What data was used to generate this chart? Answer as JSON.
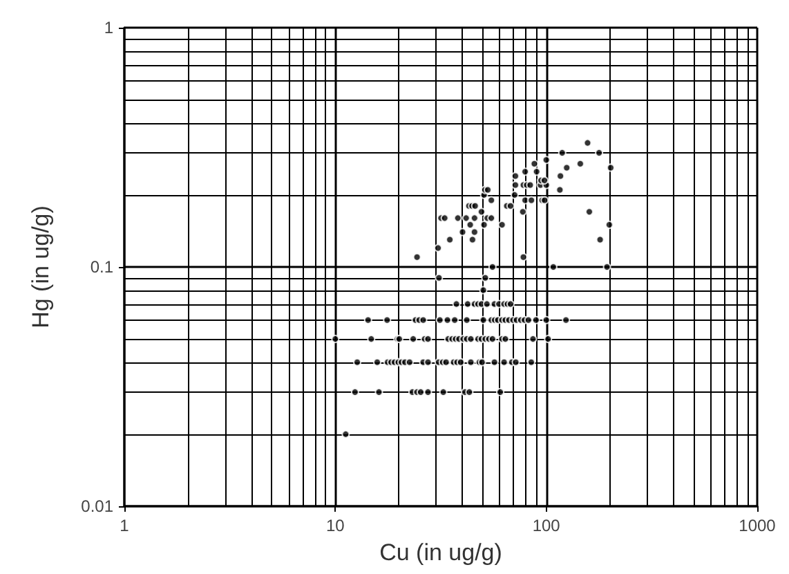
{
  "chart_data": {
    "type": "scatter",
    "xlabel": "Cu (in ug/g)",
    "ylabel": "Hg (in ug/g)",
    "log": "xy",
    "grid": true,
    "marker": "circle",
    "xlim": [
      1,
      1000
    ],
    "xticks": [
      1,
      10,
      100,
      1000
    ],
    "ylim": [
      0.01,
      1
    ],
    "yticks": [
      0.01,
      0.1,
      1
    ],
    "series": [
      {
        "color": "#000000",
        "x": [
          14.3,
          17.6,
          24,
          25,
          26.1,
          31.3,
          34,
          36.8,
          42,
          50.3,
          54.9,
          57,
          59,
          61.7,
          64,
          66.6,
          69.6,
          72.3,
          75.8,
          78.9,
          82.3,
          89.4,
          100,
          124,
          10,
          14.8,
          19.7,
          20.1,
          23.4,
          26.5,
          27.5,
          34.3,
          35.8,
          37.2,
          38.6,
          40.4,
          42,
          43.9,
          47.5,
          49.3,
          51.4,
          53.5,
          55.6,
          61.7,
          64,
          86.5,
          102,
          12.7,
          15.8,
          17.7,
          18.4,
          19.1,
          19.9,
          20.6,
          21.4,
          22.5,
          26.1,
          27.5,
          30.9,
          32.3,
          33.5,
          36.4,
          37.8,
          39.3,
          43.9,
          48.2,
          49.6,
          56.8,
          63.1,
          68.7,
          71.7,
          84.9,
          12.4,
          16.1,
          23.2,
          24.4,
          25.4,
          27.5,
          32.5,
          41.2,
          43.2,
          60.5,
          11.2,
          37.5,
          42.4,
          45.7,
          47.5,
          49.3,
          52.3,
          56.8,
          59.7,
          63.1,
          65.5,
          67.7,
          50.3,
          31,
          51.4,
          55.6,
          108,
          194,
          24.4,
          77.9,
          30.7,
          34.9,
          44.7,
          180,
          40.1,
          45.7,
          43.6,
          50.7,
          61.7,
          199,
          31.7,
          33,
          38.1,
          41.7,
          45.7,
          52.5,
          54.9,
          49.3,
          77.4,
          160,
          43,
          44.5,
          46,
          65,
          67.7,
          50.7,
          70.8,
          51.2,
          52.8,
          116,
          54.9,
          79.4,
          85,
          95.6,
          98.2,
          71.4,
          77.9,
          80.9,
          83.9,
          93.9,
          100,
          94.4,
          98,
          71.4,
          116.7,
          79.4,
          90,
          125,
          202,
          87.8,
          145,
          100,
          119,
          178,
          157
        ],
        "values": [
          0.06,
          0.06,
          0.06,
          0.06,
          0.06,
          0.06,
          0.06,
          0.06,
          0.06,
          0.06,
          0.06,
          0.06,
          0.06,
          0.06,
          0.06,
          0.06,
          0.06,
          0.06,
          0.06,
          0.06,
          0.06,
          0.06,
          0.06,
          0.06,
          0.05,
          0.05,
          0.05,
          0.05,
          0.05,
          0.05,
          0.05,
          0.05,
          0.05,
          0.05,
          0.05,
          0.05,
          0.05,
          0.05,
          0.05,
          0.05,
          0.05,
          0.05,
          0.05,
          0.05,
          0.05,
          0.05,
          0.05,
          0.04,
          0.04,
          0.04,
          0.04,
          0.04,
          0.04,
          0.04,
          0.04,
          0.04,
          0.04,
          0.04,
          0.04,
          0.04,
          0.04,
          0.04,
          0.04,
          0.04,
          0.04,
          0.04,
          0.04,
          0.04,
          0.04,
          0.04,
          0.04,
          0.04,
          0.03,
          0.03,
          0.03,
          0.03,
          0.03,
          0.03,
          0.03,
          0.03,
          0.03,
          0.03,
          0.02,
          0.07,
          0.07,
          0.07,
          0.07,
          0.07,
          0.07,
          0.07,
          0.07,
          0.07,
          0.07,
          0.07,
          0.08,
          0.09,
          0.09,
          0.1,
          0.1,
          0.1,
          0.11,
          0.11,
          0.12,
          0.13,
          0.13,
          0.13,
          0.14,
          0.14,
          0.15,
          0.15,
          0.15,
          0.15,
          0.16,
          0.16,
          0.16,
          0.16,
          0.16,
          0.16,
          0.16,
          0.17,
          0.17,
          0.17,
          0.18,
          0.18,
          0.18,
          0.18,
          0.18,
          0.2,
          0.2,
          0.21,
          0.21,
          0.21,
          0.19,
          0.19,
          0.19,
          0.19,
          0.19,
          0.22,
          0.22,
          0.22,
          0.22,
          0.22,
          0.22,
          0.23,
          0.23,
          0.24,
          0.24,
          0.25,
          0.25,
          0.26,
          0.26,
          0.27,
          0.27,
          0.28,
          0.3,
          0.3,
          0.33
        ]
      }
    ]
  }
}
